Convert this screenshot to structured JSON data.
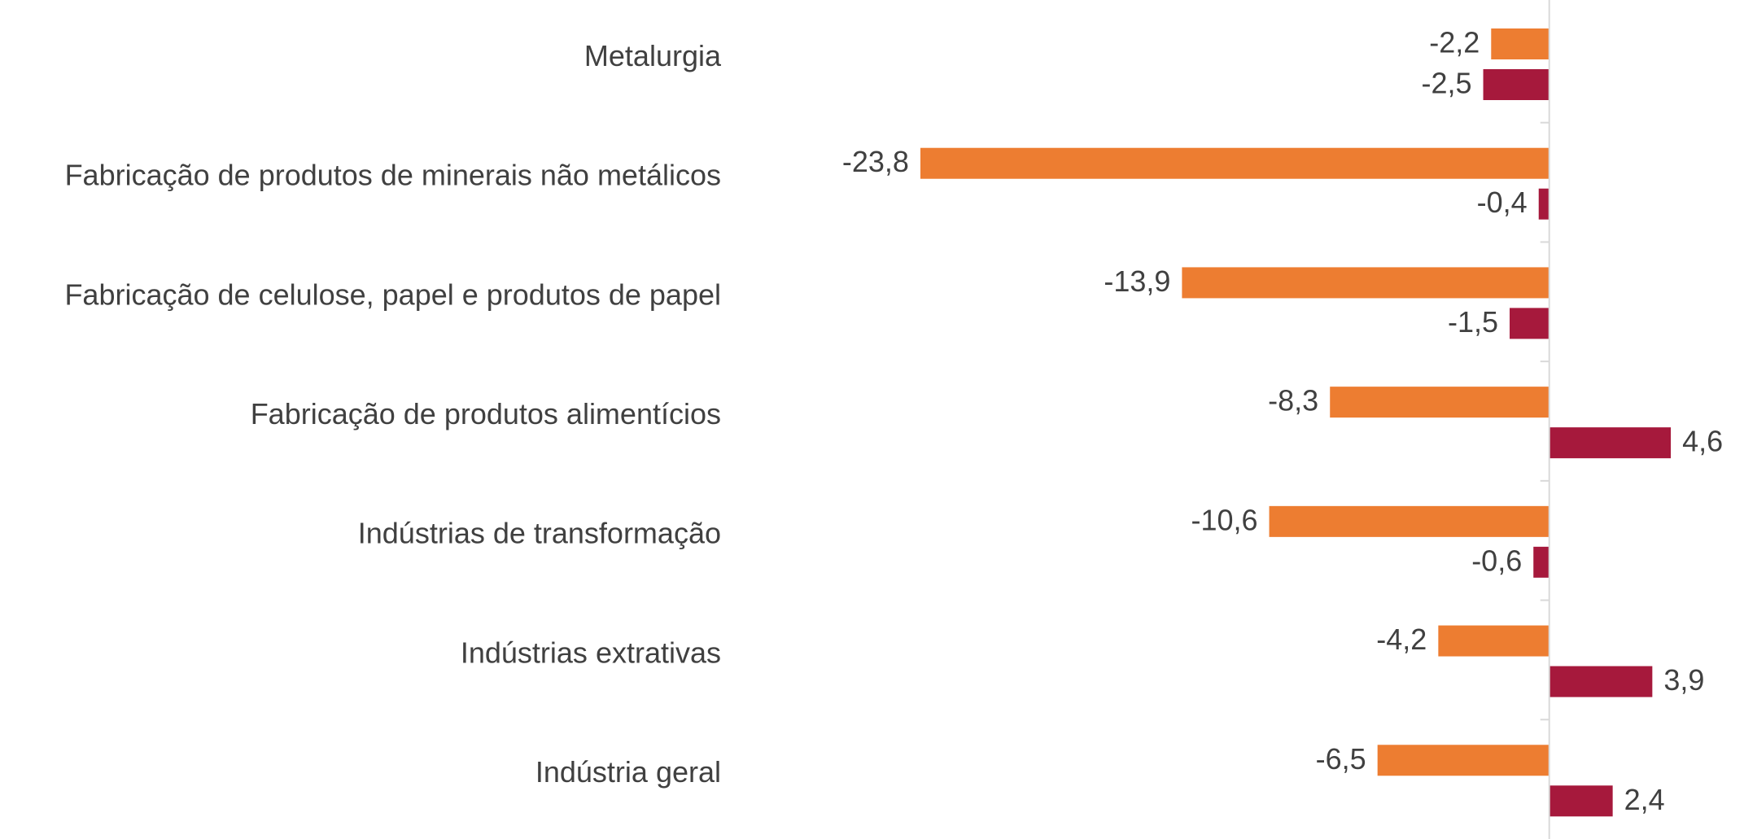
{
  "chart_data": {
    "type": "barh",
    "categories": [
      "Metalurgia",
      "Fabricação de produtos de minerais não metálicos",
      "Fabricação de celulose, papel e produtos de papel",
      "Fabricação de produtos alimentícios",
      "Indústrias de transformação",
      "Indústrias extrativas",
      "Indústria geral"
    ],
    "series": [
      {
        "color": "#ED7D31",
        "values": [
          -2.2,
          -23.8,
          -13.9,
          -8.3,
          -10.6,
          -4.2,
          -6.5
        ],
        "value_labels": [
          "-2,2",
          "-23,8",
          "-13,9",
          "-8,3",
          "-10,6",
          "-4,2",
          "-6,5"
        ]
      },
      {
        "color": "#A6193C",
        "values": [
          -2.5,
          -0.4,
          -1.5,
          4.6,
          -0.6,
          3.9,
          2.4
        ],
        "value_labels": [
          "-2,5",
          "-0,4",
          "-1,5",
          "4,6",
          "-0,6",
          "3,9",
          "2,4"
        ]
      }
    ],
    "xlim": [
      -25,
      7
    ]
  }
}
